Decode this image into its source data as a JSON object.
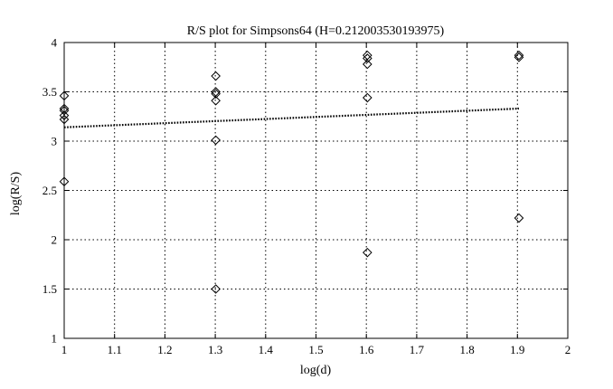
{
  "chart_data": {
    "type": "scatter",
    "title": "R/S plot for Simpsons64 (H=0.212003530193975)",
    "xlabel": "log(d)",
    "ylabel": "log(R/S)",
    "xlim": [
      1,
      2
    ],
    "ylim": [
      1,
      4
    ],
    "xticks": [
      1,
      1.1,
      1.2,
      1.3,
      1.4,
      1.5,
      1.6,
      1.7,
      1.8,
      1.9,
      2
    ],
    "xtick_labels": [
      "1",
      "1.1",
      "1.2",
      "1.3",
      "1.4",
      "1.5",
      "1.6",
      "1.7",
      "1.8",
      "1.9",
      "2"
    ],
    "yticks": [
      1,
      1.5,
      2,
      2.5,
      3,
      3.5,
      4
    ],
    "ytick_labels": [
      "1",
      "1.5",
      "2",
      "2.5",
      "3",
      "3.5",
      "4"
    ],
    "grid": true,
    "marker": "diamond",
    "colors": {
      "marker": "#000000",
      "fit_line": "#000000",
      "grid": "#000000"
    },
    "points": [
      {
        "x": 1.0,
        "y": 3.46
      },
      {
        "x": 1.0,
        "y": 3.33
      },
      {
        "x": 1.0,
        "y": 3.31
      },
      {
        "x": 1.0,
        "y": 3.26
      },
      {
        "x": 1.0,
        "y": 3.22
      },
      {
        "x": 1.0,
        "y": 2.59
      },
      {
        "x": 1.301,
        "y": 3.66
      },
      {
        "x": 1.301,
        "y": 3.5
      },
      {
        "x": 1.301,
        "y": 3.48
      },
      {
        "x": 1.301,
        "y": 3.41
      },
      {
        "x": 1.301,
        "y": 3.01
      },
      {
        "x": 1.301,
        "y": 1.5
      },
      {
        "x": 1.602,
        "y": 3.87
      },
      {
        "x": 1.602,
        "y": 3.84
      },
      {
        "x": 1.602,
        "y": 3.78
      },
      {
        "x": 1.602,
        "y": 3.44
      },
      {
        "x": 1.602,
        "y": 1.87
      },
      {
        "x": 1.903,
        "y": 3.87
      },
      {
        "x": 1.903,
        "y": 3.85
      },
      {
        "x": 1.903,
        "y": 2.22
      }
    ],
    "fit_line": {
      "x": [
        1.0,
        1.903
      ],
      "y": [
        3.14,
        3.33
      ],
      "style": "dotted"
    }
  }
}
